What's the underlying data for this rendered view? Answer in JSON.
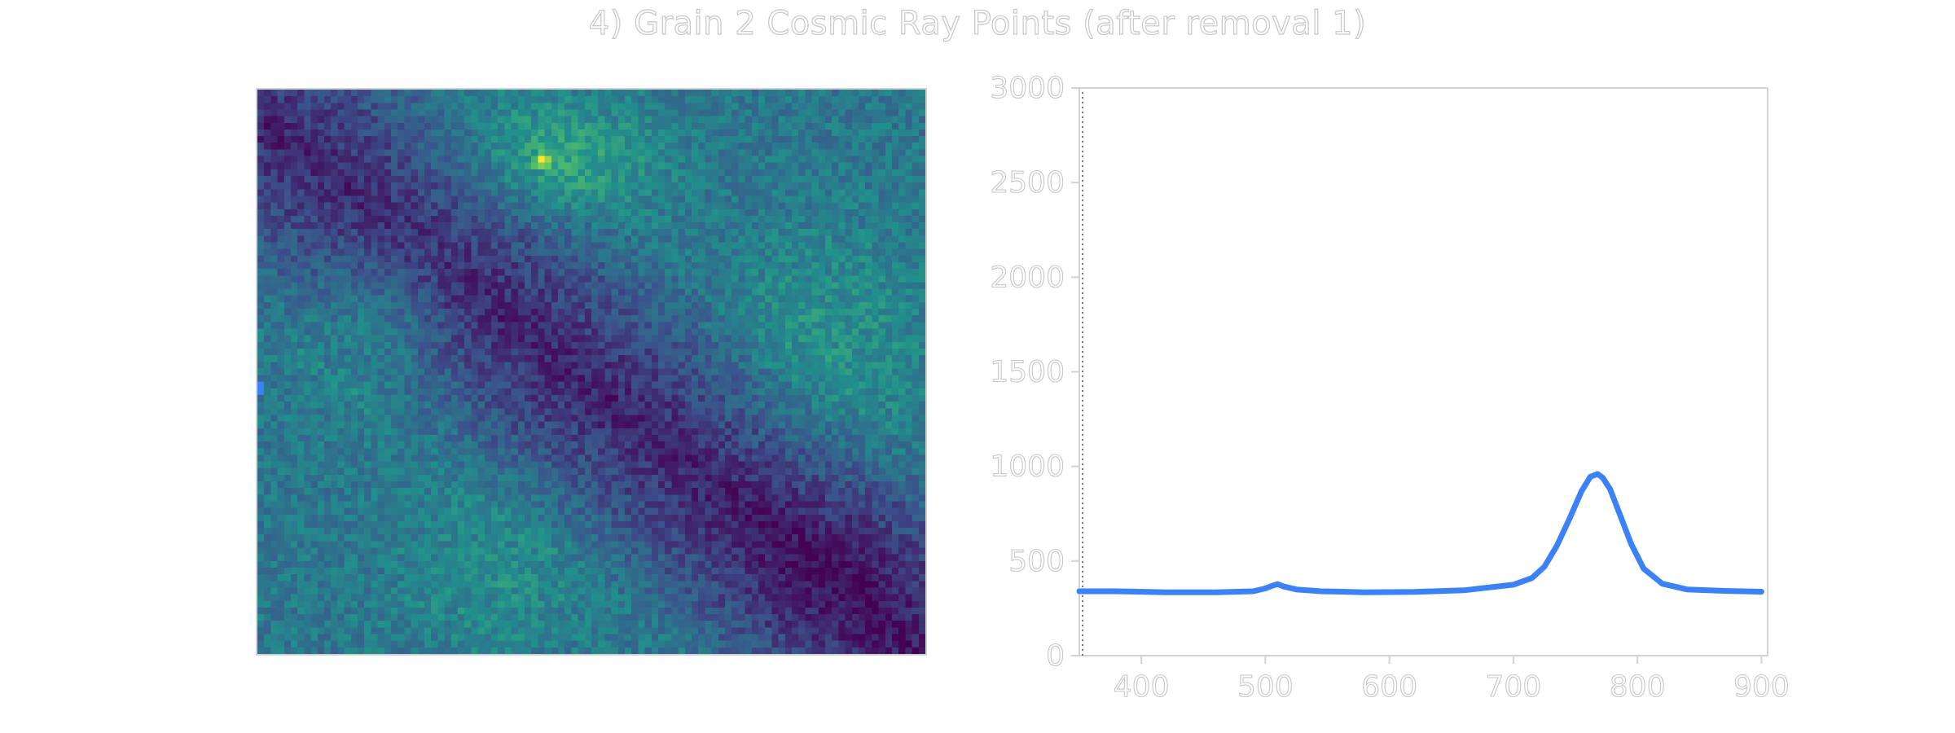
{
  "title": "4) Grain 2 Cosmic Ray Points (after removal 1)",
  "colors": {
    "line": "#3b82f6",
    "frame": "#d2d2d2",
    "text_outline": "#c7c7c7",
    "heatmap_low": "#440154",
    "heatmap_mid": "#21918c",
    "heatmap_high": "#fde725"
  },
  "chart_data": [
    {
      "type": "heatmap",
      "colormap": "viridis",
      "grid_columns": 100,
      "grid_rows": 85,
      "description_of_pattern": "diagonal dark band from top-left to bottom-right, brighter teal regions at top-center, left-middle and right; small bright yellow cluster near top-center",
      "bright_spot": {
        "col": 42,
        "row": 10
      },
      "marked_point": {
        "col": 0,
        "row": 44,
        "color": "#3b82f6"
      }
    },
    {
      "type": "line",
      "xlim": [
        350,
        905
      ],
      "ylim": [
        0,
        3000
      ],
      "xticks": [
        400,
        500,
        600,
        700,
        800,
        900
      ],
      "yticks": [
        0,
        500,
        1000,
        1500,
        2000,
        2500,
        3000
      ],
      "xtick_labels": [
        "400",
        "500",
        "600",
        "700",
        "800",
        "900"
      ],
      "ytick_labels": [
        "0",
        "500",
        "1000",
        "1500",
        "2000",
        "2500",
        "3000"
      ],
      "grid": false,
      "series": [
        {
          "x": [
            350,
            380,
            420,
            460,
            490,
            500,
            505,
            510,
            515,
            525,
            545,
            580,
            620,
            660,
            700,
            715,
            725,
            735,
            745,
            755,
            762,
            768,
            772,
            778,
            785,
            795,
            805,
            820,
            840,
            870,
            900
          ],
          "y": [
            340,
            340,
            335,
            335,
            340,
            355,
            368,
            378,
            365,
            350,
            340,
            335,
            337,
            345,
            375,
            410,
            470,
            580,
            720,
            870,
            945,
            960,
            940,
            880,
            760,
            590,
            460,
            380,
            350,
            342,
            338
          ]
        }
      ]
    }
  ]
}
